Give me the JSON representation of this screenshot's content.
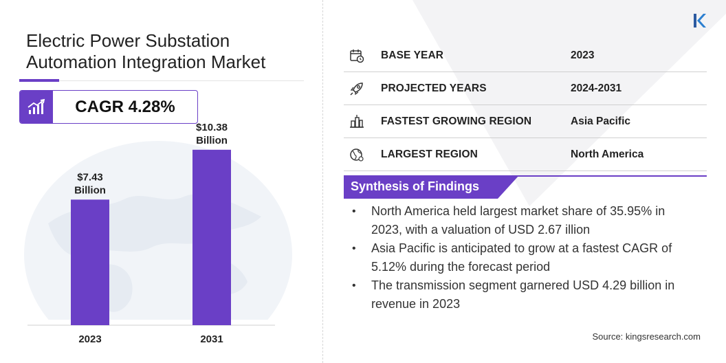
{
  "header": {
    "title_line1": "Electric Power Substation",
    "title_line2": "Automation Integration Market"
  },
  "cagr": {
    "label": "CAGR 4.28%",
    "icon": "growth-chart-icon"
  },
  "chart_data": {
    "type": "bar",
    "categories": [
      "2023",
      "2031"
    ],
    "values": [
      7.43,
      10.38
    ],
    "unit": "USD Billion",
    "data_labels": [
      {
        "value": "$7.43",
        "unit": "Billion"
      },
      {
        "value": "$10.38",
        "unit": "Billion"
      }
    ],
    "xlabel": "",
    "ylabel": "",
    "ylim": [
      0,
      12
    ],
    "grid": false,
    "bar_color": "#6a3fc6"
  },
  "info_table": [
    {
      "label": "BASE YEAR",
      "value": "2023",
      "icon": "calendar-icon"
    },
    {
      "label": "PROJECTED YEARS",
      "value": "2024-2031",
      "icon": "rocket-icon"
    },
    {
      "label": "FASTEST GROWING REGION",
      "value": "Asia Pacific",
      "icon": "city-region-icon"
    },
    {
      "label": "LARGEST REGION",
      "value": "North America",
      "icon": "globe-icon"
    }
  ],
  "synthesis": {
    "title": "Synthesis of Findings",
    "findings": [
      "North America held largest market share of 35.95% in 2023, with a valuation of USD 2.67 illion",
      "Asia Pacific is anticipated to grow at a fastest CAGR of 5.12% during the forecast period",
      "The transmission segment garnered USD 4.29 billion in revenue in 2023"
    ]
  },
  "source": "Source: kingsresearch.com",
  "colors": {
    "accent": "#6a3fc6",
    "text": "#222222",
    "globe": "#eef2f7"
  },
  "logo": {
    "icon": "kings-research-logo-icon"
  }
}
